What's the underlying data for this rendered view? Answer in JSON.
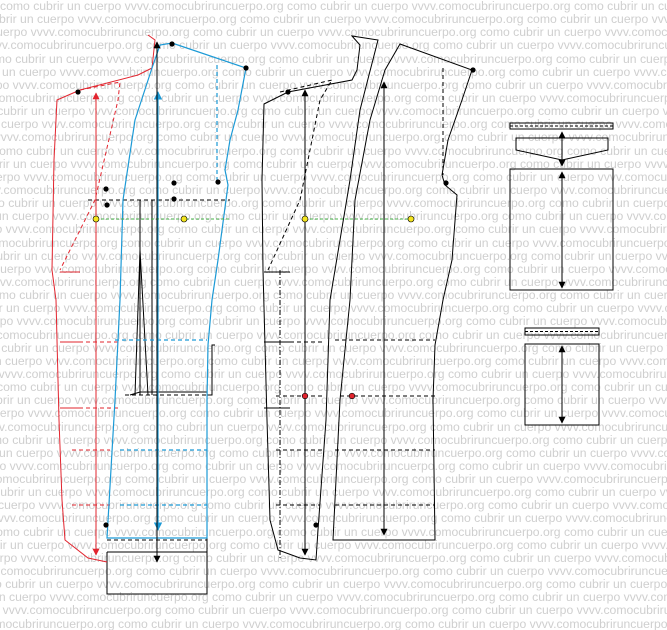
{
  "watermark": {
    "phrase": "como cubrir un cuerpo",
    "site": "vvvv.comocubriruncuerpo.org"
  },
  "colors": {
    "red": "#e2242e",
    "blue": "#1c9ad6",
    "green": "#47b24a",
    "yellow": "#f4e51f",
    "black": "#000000"
  },
  "pieces": [
    {
      "name": "front-panel-red"
    },
    {
      "name": "side-panel-blue"
    },
    {
      "name": "front-pattern-black"
    },
    {
      "name": "back-pattern-black"
    },
    {
      "name": "upper-pocket-flap"
    },
    {
      "name": "upper-pocket-bag"
    },
    {
      "name": "lower-pocket-welt"
    },
    {
      "name": "lower-pocket-bag"
    }
  ]
}
